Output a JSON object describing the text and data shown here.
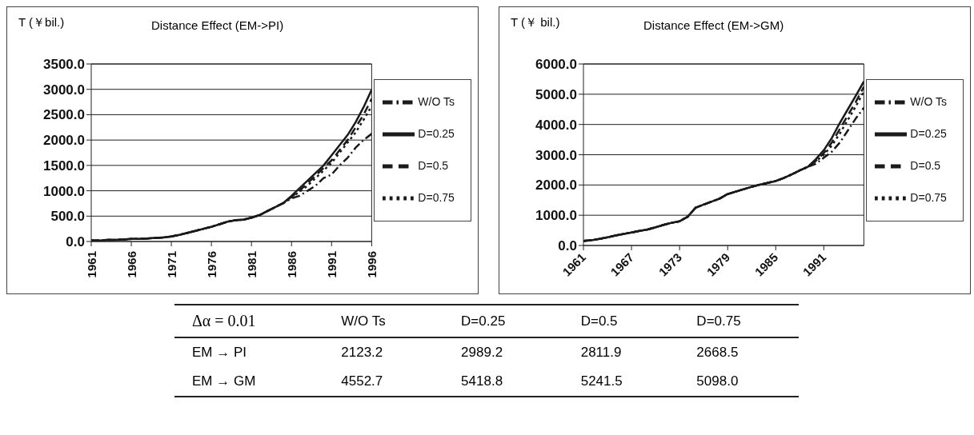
{
  "chart_data": [
    {
      "type": "line",
      "title": "Distance Effect (EM->PI)",
      "ylabel": "T (￥bil.)",
      "grid": "y",
      "legend": "right",
      "marker": "none",
      "x": [
        1961,
        1962,
        1963,
        1964,
        1965,
        1966,
        1967,
        1968,
        1969,
        1970,
        1971,
        1972,
        1973,
        1974,
        1975,
        1976,
        1977,
        1978,
        1979,
        1980,
        1981,
        1982,
        1983,
        1984,
        1985,
        1986,
        1987,
        1988,
        1989,
        1990,
        1991,
        1992,
        1993,
        1994,
        1995,
        1996
      ],
      "xlim": [
        1961,
        1996
      ],
      "xticks": [
        1961,
        1966,
        1971,
        1976,
        1981,
        1986,
        1991,
        1996
      ],
      "ylim": [
        0,
        3500
      ],
      "yticks": [
        {
          "value": 0,
          "label": "0.0"
        },
        {
          "value": 500,
          "label": "500.0"
        },
        {
          "value": 1000,
          "label": "1000.0"
        },
        {
          "value": 1500,
          "label": "1500.0"
        },
        {
          "value": 2000,
          "label": "2000.0"
        },
        {
          "value": 2500,
          "label": "2500.0"
        },
        {
          "value": 3000,
          "label": "3000.0"
        },
        {
          "value": 3500,
          "label": "3500.0"
        }
      ],
      "series": [
        {
          "name": "W/O Ts",
          "color": "#1a1a1a",
          "line_style": "dashdot",
          "values": [
            20,
            20,
            30,
            30,
            40,
            50,
            50,
            60,
            70,
            80,
            100,
            130,
            170,
            210,
            250,
            290,
            340,
            390,
            420,
            430,
            470,
            520,
            600,
            680,
            760,
            850,
            900,
            1000,
            1100,
            1250,
            1320,
            1500,
            1650,
            1850,
            2000,
            2123.2
          ]
        },
        {
          "name": "D=0.25",
          "color": "#1a1a1a",
          "line_style": "solid",
          "values": [
            20,
            20,
            30,
            30,
            40,
            50,
            50,
            60,
            70,
            80,
            100,
            130,
            170,
            210,
            250,
            290,
            340,
            390,
            420,
            430,
            470,
            520,
            600,
            680,
            760,
            900,
            1050,
            1200,
            1350,
            1500,
            1700,
            1900,
            2100,
            2350,
            2650,
            2989.2
          ]
        },
        {
          "name": "D=0.5",
          "color": "#1a1a1a",
          "line_style": "dashed",
          "values": [
            20,
            20,
            30,
            30,
            40,
            50,
            50,
            60,
            70,
            80,
            100,
            130,
            170,
            210,
            250,
            290,
            340,
            390,
            420,
            430,
            470,
            520,
            600,
            680,
            760,
            880,
            1000,
            1150,
            1300,
            1450,
            1600,
            1800,
            2000,
            2250,
            2500,
            2811.9
          ]
        },
        {
          "name": "D=0.75",
          "color": "#1a1a1a",
          "line_style": "dotted",
          "values": [
            20,
            20,
            30,
            30,
            40,
            50,
            50,
            60,
            70,
            80,
            100,
            130,
            170,
            210,
            250,
            290,
            340,
            390,
            420,
            430,
            470,
            520,
            600,
            680,
            760,
            870,
            980,
            1100,
            1250,
            1400,
            1550,
            1750,
            1950,
            2150,
            2400,
            2668.5
          ]
        }
      ]
    },
    {
      "type": "line",
      "title": "Distance Effect (EM->GM)",
      "ylabel": "T (￥ bil.)",
      "grid": "y",
      "legend": "right",
      "marker": "none",
      "x": [
        1961,
        1962,
        1963,
        1964,
        1965,
        1966,
        1967,
        1968,
        1969,
        1970,
        1971,
        1972,
        1973,
        1974,
        1975,
        1976,
        1977,
        1978,
        1979,
        1980,
        1981,
        1982,
        1983,
        1984,
        1985,
        1986,
        1987,
        1988,
        1989,
        1990,
        1991,
        1992,
        1993,
        1994,
        1995,
        1996
      ],
      "xlim": [
        1961,
        1996
      ],
      "xticks": [
        1961,
        1967,
        1973,
        1979,
        1985,
        1991
      ],
      "ylim": [
        0,
        6000
      ],
      "yticks": [
        {
          "value": 0,
          "label": "0.0"
        },
        {
          "value": 1000,
          "label": "1000.0"
        },
        {
          "value": 2000,
          "label": "2000.0"
        },
        {
          "value": 3000,
          "label": "3000.0"
        },
        {
          "value": 4000,
          "label": "4000.0"
        },
        {
          "value": 5000,
          "label": "5000.0"
        },
        {
          "value": 6000,
          "label": "6000.0"
        }
      ],
      "series": [
        {
          "name": "W/O Ts",
          "color": "#1a1a1a",
          "line_style": "dashdot",
          "values": [
            150,
            170,
            220,
            270,
            330,
            380,
            430,
            480,
            530,
            600,
            680,
            750,
            800,
            950,
            1250,
            1350,
            1450,
            1550,
            1700,
            1780,
            1860,
            1940,
            2010,
            2070,
            2130,
            2230,
            2350,
            2480,
            2600,
            2700,
            2900,
            3100,
            3400,
            3800,
            4200,
            4552.7
          ]
        },
        {
          "name": "D=0.25",
          "color": "#1a1a1a",
          "line_style": "solid",
          "values": [
            150,
            170,
            220,
            270,
            330,
            380,
            430,
            480,
            530,
            600,
            680,
            750,
            800,
            950,
            1250,
            1350,
            1450,
            1550,
            1700,
            1780,
            1860,
            1940,
            2010,
            2070,
            2130,
            2230,
            2350,
            2480,
            2600,
            2850,
            3150,
            3550,
            4050,
            4500,
            4950,
            5418.8
          ]
        },
        {
          "name": "D=0.5",
          "color": "#1a1a1a",
          "line_style": "dashed",
          "values": [
            150,
            170,
            220,
            270,
            330,
            380,
            430,
            480,
            530,
            600,
            680,
            750,
            800,
            950,
            1250,
            1350,
            1450,
            1550,
            1700,
            1780,
            1860,
            1940,
            2010,
            2070,
            2130,
            2230,
            2350,
            2480,
            2600,
            2800,
            3050,
            3400,
            3850,
            4300,
            4750,
            5241.5
          ]
        },
        {
          "name": "D=0.75",
          "color": "#1a1a1a",
          "line_style": "dotted",
          "values": [
            150,
            170,
            220,
            270,
            330,
            380,
            430,
            480,
            530,
            600,
            680,
            750,
            800,
            950,
            1250,
            1350,
            1450,
            1550,
            1700,
            1780,
            1860,
            1940,
            2010,
            2070,
            2130,
            2230,
            2350,
            2480,
            2600,
            2780,
            3000,
            3300,
            3700,
            4150,
            4600,
            5098.0
          ]
        }
      ]
    },
    {
      "type": "other",
      "annotations": [
        "Δα = 0.01",
        "W/O Ts",
        "D=0.25",
        "D=0.5",
        "D=0.75",
        "EM → PI",
        "2123.2",
        "2989.2",
        "2811.9",
        "2668.5",
        "EM → GM",
        "4552.7",
        "5418.8",
        "5241.5",
        "5098.0"
      ]
    }
  ]
}
